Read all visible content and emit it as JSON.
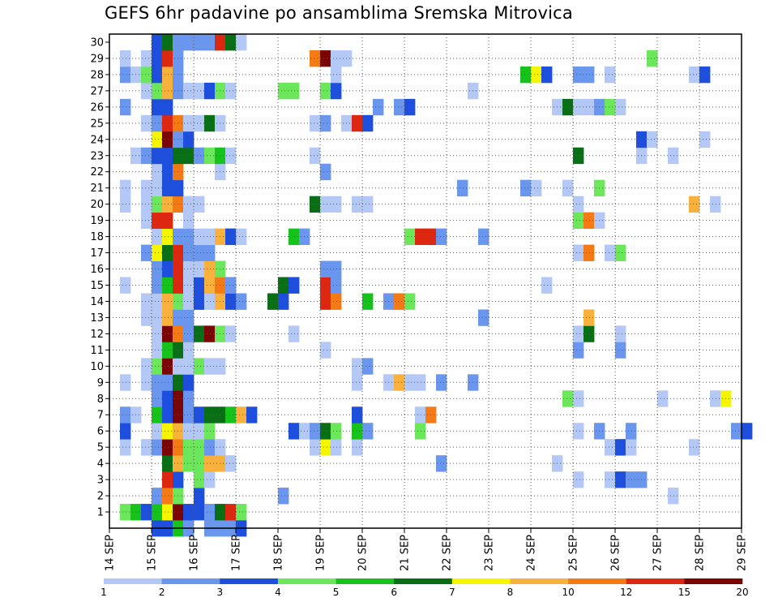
{
  "chart_data": {
    "type": "heatmap",
    "title": "GEFS 6hr padavine po ansamblima Sremska Mitrovica",
    "xlabel": "",
    "ylabel": "",
    "x_tick_labels": [
      "14 SEP",
      "15 SEP",
      "16 SEP",
      "17 SEP",
      "18 SEP",
      "19 SEP",
      "20 SEP",
      "21 SEP",
      "22 SEP",
      "23 SEP",
      "24 SEP",
      "25 SEP",
      "26 SEP",
      "27 SEP",
      "28 SEP",
      "29 SEP"
    ],
    "y_tick_labels": [
      "1",
      "2",
      "3",
      "4",
      "5",
      "6",
      "7",
      "8",
      "9",
      "10",
      "11",
      "12",
      "13",
      "14",
      "15",
      "16",
      "17",
      "18",
      "19",
      "20",
      "21",
      "22",
      "23",
      "24",
      "25",
      "26",
      "27",
      "28",
      "29",
      "30"
    ],
    "x_range_days": [
      14,
      29
    ],
    "y_range_members": [
      0,
      30
    ],
    "time_step_hours": 6,
    "grid": "dotted",
    "legend_position": "bottom",
    "legend_labels": [
      "1",
      "2",
      "3",
      "4",
      "5",
      "6",
      "7",
      "8",
      "10",
      "12",
      "15",
      "20"
    ],
    "bins": [
      {
        "color": "#b4c8f5"
      },
      {
        "color": "#6b96ee"
      },
      {
        "color": "#1d4fdc"
      },
      {
        "color": "#6ce65a"
      },
      {
        "color": "#16c21b"
      },
      {
        "color": "#0a6e17"
      },
      {
        "color": "#f5f500"
      },
      {
        "color": "#f7b13c"
      },
      {
        "color": "#f37a14"
      },
      {
        "color": "#dc2810"
      },
      {
        "color": "#7a0505"
      }
    ],
    "member_rows": {
      "30": [
        [
          15.0,
          2
        ],
        [
          15.25,
          5
        ],
        [
          15.5,
          1
        ],
        [
          15.75,
          1
        ],
        [
          16.0,
          1
        ],
        [
          16.25,
          1
        ],
        [
          16.5,
          9
        ],
        [
          16.75,
          5
        ],
        [
          17.0,
          0
        ]
      ],
      "29": [
        [
          14.25,
          0
        ],
        [
          14.75,
          0
        ],
        [
          15.0,
          2
        ],
        [
          15.25,
          9
        ],
        [
          15.5,
          1
        ],
        [
          18.75,
          8
        ],
        [
          19.0,
          10
        ],
        [
          19.25,
          0
        ],
        [
          19.5,
          0
        ],
        [
          26.75,
          3
        ]
      ],
      "28": [
        [
          14.25,
          1
        ],
        [
          14.5,
          0
        ],
        [
          14.75,
          3
        ],
        [
          15.0,
          2
        ],
        [
          15.25,
          7
        ],
        [
          15.5,
          1
        ],
        [
          19.25,
          0
        ],
        [
          23.75,
          4
        ],
        [
          24.0,
          6
        ],
        [
          24.25,
          2
        ],
        [
          25.0,
          1
        ],
        [
          25.25,
          1
        ],
        [
          25.75,
          0
        ],
        [
          27.75,
          0
        ],
        [
          28.0,
          2
        ]
      ],
      "27": [
        [
          14.75,
          0
        ],
        [
          15.0,
          3
        ],
        [
          15.25,
          7
        ],
        [
          15.5,
          1
        ],
        [
          15.75,
          0
        ],
        [
          16.0,
          0
        ],
        [
          16.25,
          2
        ],
        [
          16.5,
          3
        ],
        [
          16.75,
          0
        ],
        [
          18.0,
          3
        ],
        [
          18.25,
          3
        ],
        [
          19.0,
          3
        ],
        [
          19.25,
          2
        ],
        [
          22.5,
          0
        ]
      ],
      "26": [
        [
          14.25,
          1
        ],
        [
          15.0,
          2
        ],
        [
          15.25,
          2
        ],
        [
          20.25,
          1
        ],
        [
          20.75,
          1
        ],
        [
          21.0,
          2
        ],
        [
          24.5,
          0
        ],
        [
          24.75,
          5
        ],
        [
          25.0,
          0
        ],
        [
          25.25,
          0
        ],
        [
          25.5,
          1
        ],
        [
          25.75,
          3
        ],
        [
          26.0,
          0
        ]
      ],
      "25": [
        [
          14.75,
          0
        ],
        [
          15.0,
          1
        ],
        [
          15.25,
          9
        ],
        [
          15.5,
          8
        ],
        [
          15.75,
          0
        ],
        [
          16.0,
          0
        ],
        [
          16.25,
          5
        ],
        [
          16.5,
          0
        ],
        [
          18.75,
          0
        ],
        [
          19.0,
          1
        ],
        [
          19.5,
          0
        ],
        [
          19.75,
          9
        ],
        [
          20.0,
          2
        ]
      ],
      "24": [
        [
          15.0,
          6
        ],
        [
          15.25,
          10
        ],
        [
          15.5,
          1
        ],
        [
          15.75,
          2
        ],
        [
          26.5,
          2
        ],
        [
          26.75,
          0
        ],
        [
          28.0,
          0
        ]
      ],
      "23": [
        [
          14.5,
          0
        ],
        [
          14.75,
          1
        ],
        [
          15.0,
          2
        ],
        [
          15.25,
          2
        ],
        [
          15.5,
          5
        ],
        [
          15.75,
          5
        ],
        [
          16.0,
          1
        ],
        [
          16.25,
          3
        ],
        [
          16.5,
          4
        ],
        [
          16.75,
          0
        ],
        [
          18.75,
          0
        ],
        [
          25.0,
          5
        ],
        [
          26.5,
          0
        ],
        [
          27.25,
          0
        ]
      ],
      "22": [
        [
          15.0,
          0
        ],
        [
          15.25,
          2
        ],
        [
          15.5,
          8
        ],
        [
          16.5,
          0
        ],
        [
          19.0,
          1
        ]
      ],
      "21": [
        [
          14.25,
          0
        ],
        [
          14.75,
          0
        ],
        [
          15.0,
          0
        ],
        [
          15.25,
          2
        ],
        [
          15.5,
          2
        ],
        [
          22.25,
          1
        ],
        [
          23.75,
          1
        ],
        [
          24.0,
          0
        ],
        [
          24.75,
          0
        ],
        [
          25.5,
          3
        ]
      ],
      "20": [
        [
          14.25,
          0
        ],
        [
          14.75,
          0
        ],
        [
          15.0,
          3
        ],
        [
          15.25,
          7
        ],
        [
          15.5,
          8
        ],
        [
          15.75,
          0
        ],
        [
          16.0,
          0
        ],
        [
          18.75,
          5
        ],
        [
          19.0,
          0
        ],
        [
          19.25,
          0
        ],
        [
          19.75,
          0
        ],
        [
          20.0,
          0
        ],
        [
          25.0,
          0
        ],
        [
          27.75,
          7
        ],
        [
          28.25,
          0
        ]
      ],
      "19": [
        [
          14.75,
          0
        ],
        [
          15.0,
          9
        ],
        [
          15.25,
          9
        ],
        [
          15.75,
          0
        ],
        [
          25.0,
          3
        ],
        [
          25.25,
          8
        ],
        [
          25.5,
          0
        ]
      ],
      "18": [
        [
          15.0,
          0
        ],
        [
          15.25,
          6
        ],
        [
          15.5,
          1
        ],
        [
          15.75,
          1
        ],
        [
          16.0,
          0
        ],
        [
          16.25,
          0
        ],
        [
          16.5,
          7
        ],
        [
          16.75,
          2
        ],
        [
          17.0,
          0
        ],
        [
          18.25,
          4
        ],
        [
          18.5,
          1
        ],
        [
          21.0,
          3
        ],
        [
          21.25,
          9
        ],
        [
          21.5,
          9
        ],
        [
          21.75,
          1
        ],
        [
          22.75,
          1
        ]
      ],
      "17": [
        [
          14.75,
          1
        ],
        [
          15.0,
          6
        ],
        [
          15.25,
          5
        ],
        [
          15.5,
          9
        ],
        [
          15.75,
          1
        ],
        [
          16.0,
          1
        ],
        [
          16.25,
          1
        ],
        [
          25.0,
          0
        ],
        [
          25.25,
          8
        ],
        [
          25.75,
          0
        ],
        [
          26.0,
          3
        ]
      ],
      "16": [
        [
          15.0,
          1
        ],
        [
          15.25,
          2
        ],
        [
          15.5,
          9
        ],
        [
          15.75,
          0
        ],
        [
          16.0,
          0
        ],
        [
          16.25,
          7
        ],
        [
          16.5,
          3
        ],
        [
          19.0,
          1
        ],
        [
          19.25,
          1
        ]
      ],
      "15": [
        [
          14.25,
          0
        ],
        [
          15.0,
          1
        ],
        [
          15.25,
          4
        ],
        [
          15.5,
          9
        ],
        [
          15.75,
          0
        ],
        [
          16.0,
          2
        ],
        [
          16.25,
          7
        ],
        [
          16.5,
          8
        ],
        [
          16.75,
          1
        ],
        [
          18.0,
          5
        ],
        [
          18.25,
          2
        ],
        [
          19.0,
          9
        ],
        [
          19.25,
          1
        ],
        [
          24.25,
          0
        ]
      ],
      "14": [
        [
          14.75,
          0
        ],
        [
          15.0,
          0
        ],
        [
          15.25,
          7
        ],
        [
          15.5,
          3
        ],
        [
          15.75,
          0
        ],
        [
          16.0,
          2
        ],
        [
          16.25,
          0
        ],
        [
          16.5,
          7
        ],
        [
          16.75,
          2
        ],
        [
          17.0,
          1
        ],
        [
          17.75,
          5
        ],
        [
          18.0,
          2
        ],
        [
          19.0,
          9
        ],
        [
          19.25,
          8
        ],
        [
          20.0,
          4
        ],
        [
          20.5,
          1
        ],
        [
          20.75,
          8
        ],
        [
          21.0,
          3
        ]
      ],
      "13": [
        [
          14.75,
          0
        ],
        [
          15.0,
          0
        ],
        [
          15.25,
          7
        ],
        [
          15.5,
          1
        ],
        [
          15.75,
          1
        ],
        [
          22.75,
          1
        ],
        [
          25.25,
          7
        ]
      ],
      "12": [
        [
          15.0,
          0
        ],
        [
          15.25,
          10
        ],
        [
          15.5,
          8
        ],
        [
          15.75,
          1
        ],
        [
          16.0,
          5
        ],
        [
          16.25,
          10
        ],
        [
          16.5,
          3
        ],
        [
          16.75,
          0
        ],
        [
          18.25,
          0
        ],
        [
          25.0,
          0
        ],
        [
          25.25,
          5
        ],
        [
          26.0,
          0
        ]
      ],
      "11": [
        [
          15.0,
          0
        ],
        [
          15.25,
          4
        ],
        [
          15.5,
          5
        ],
        [
          15.75,
          0
        ],
        [
          19.0,
          0
        ],
        [
          25.0,
          1
        ],
        [
          26.0,
          1
        ]
      ],
      "10": [
        [
          14.75,
          0
        ],
        [
          15.0,
          3
        ],
        [
          15.25,
          10
        ],
        [
          15.5,
          0
        ],
        [
          15.75,
          0
        ],
        [
          16.0,
          3
        ],
        [
          16.25,
          0
        ],
        [
          16.5,
          0
        ],
        [
          19.75,
          0
        ],
        [
          20.0,
          1
        ]
      ],
      "9": [
        [
          14.25,
          0
        ],
        [
          14.75,
          0
        ],
        [
          15.0,
          1
        ],
        [
          15.25,
          1
        ],
        [
          15.5,
          5
        ],
        [
          15.75,
          2
        ],
        [
          19.75,
          0
        ],
        [
          20.5,
          0
        ],
        [
          20.75,
          7
        ],
        [
          21.0,
          0
        ],
        [
          21.25,
          0
        ],
        [
          21.75,
          1
        ],
        [
          22.5,
          1
        ]
      ],
      "8": [
        [
          15.0,
          1
        ],
        [
          15.25,
          2
        ],
        [
          15.5,
          10
        ],
        [
          15.75,
          1
        ],
        [
          24.75,
          3
        ],
        [
          25.0,
          0
        ],
        [
          27.0,
          0
        ],
        [
          28.25,
          0
        ],
        [
          28.5,
          6
        ]
      ],
      "7": [
        [
          14.25,
          1
        ],
        [
          14.5,
          0
        ],
        [
          15.0,
          4
        ],
        [
          15.25,
          2
        ],
        [
          15.5,
          10
        ],
        [
          15.75,
          1
        ],
        [
          16.0,
          2
        ],
        [
          16.25,
          5
        ],
        [
          16.5,
          5
        ],
        [
          16.75,
          4
        ],
        [
          17.0,
          7
        ],
        [
          17.25,
          2
        ],
        [
          19.75,
          2
        ],
        [
          21.25,
          0
        ],
        [
          21.5,
          8
        ]
      ],
      "6": [
        [
          14.25,
          2
        ],
        [
          15.0,
          0
        ],
        [
          15.25,
          6
        ],
        [
          15.5,
          7
        ],
        [
          15.75,
          0
        ],
        [
          16.0,
          0
        ],
        [
          16.25,
          3
        ],
        [
          18.25,
          2
        ],
        [
          18.5,
          0
        ],
        [
          18.75,
          1
        ],
        [
          19.0,
          5
        ],
        [
          19.25,
          3
        ],
        [
          19.75,
          4
        ],
        [
          20.0,
          1
        ],
        [
          21.25,
          3
        ],
        [
          25.0,
          0
        ],
        [
          25.5,
          1
        ],
        [
          26.25,
          1
        ],
        [
          28.75,
          1
        ],
        [
          29.0,
          2
        ]
      ],
      "5": [
        [
          14.25,
          0
        ],
        [
          14.75,
          0
        ],
        [
          15.0,
          1
        ],
        [
          15.25,
          10
        ],
        [
          15.5,
          8
        ],
        [
          15.75,
          3
        ],
        [
          16.0,
          3
        ],
        [
          16.25,
          1
        ],
        [
          16.5,
          0
        ],
        [
          18.75,
          0
        ],
        [
          19.0,
          6
        ],
        [
          19.25,
          0
        ],
        [
          19.75,
          0
        ],
        [
          25.75,
          0
        ],
        [
          26.0,
          2
        ],
        [
          26.25,
          0
        ],
        [
          27.75,
          0
        ]
      ],
      "4": [
        [
          15.25,
          5
        ],
        [
          15.5,
          7
        ],
        [
          15.75,
          3
        ],
        [
          16.0,
          3
        ],
        [
          16.25,
          7
        ],
        [
          16.5,
          7
        ],
        [
          16.75,
          0
        ],
        [
          21.75,
          1
        ],
        [
          24.5,
          0
        ]
      ],
      "3": [
        [
          15.25,
          9
        ],
        [
          15.5,
          2
        ],
        [
          16.0,
          3
        ],
        [
          16.25,
          0
        ],
        [
          25.0,
          0
        ],
        [
          25.75,
          0
        ],
        [
          26.0,
          2
        ],
        [
          26.25,
          1
        ],
        [
          26.5,
          1
        ]
      ],
      "2": [
        [
          15.0,
          1
        ],
        [
          15.25,
          8
        ],
        [
          15.5,
          3
        ],
        [
          16.0,
          2
        ],
        [
          18.0,
          1
        ],
        [
          27.25,
          0
        ]
      ],
      "1": [
        [
          14.25,
          3
        ],
        [
          14.5,
          4
        ],
        [
          14.75,
          2
        ],
        [
          15.0,
          4
        ],
        [
          15.25,
          6
        ],
        [
          15.5,
          10
        ],
        [
          15.75,
          2
        ],
        [
          16.0,
          2
        ],
        [
          16.25,
          1
        ],
        [
          16.5,
          5
        ],
        [
          16.75,
          9
        ],
        [
          17.0,
          3
        ]
      ],
      "0": [
        [
          15.0,
          2
        ],
        [
          15.25,
          2
        ],
        [
          15.5,
          4
        ],
        [
          15.75,
          1
        ],
        [
          16.25,
          1
        ],
        [
          16.5,
          1
        ],
        [
          16.75,
          1
        ],
        [
          17.0,
          2
        ]
      ]
    }
  }
}
